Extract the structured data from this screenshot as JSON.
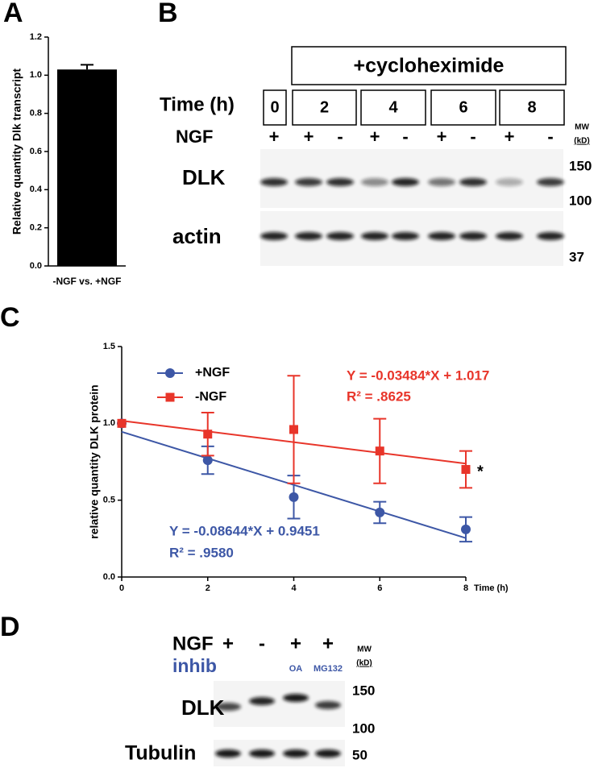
{
  "panel_labels": [
    "A",
    "B",
    "C",
    "D"
  ],
  "chart_data": [
    {
      "type": "bar",
      "ylabel": "Relative quantity Dlk transcript",
      "categories": [
        "-NGF vs. +NGF"
      ],
      "values": [
        1.03
      ],
      "errors": [
        0.025
      ],
      "color": "#000000",
      "ylim": [
        0,
        1.2
      ],
      "yticks": [
        {
          "value": 0,
          "label": "0.0"
        },
        0.2,
        0.4,
        0.6,
        0.8,
        {
          "value": 1,
          "label": "1.0"
        },
        1.2
      ]
    },
    {
      "type": "line",
      "xlabel": "Time (h)",
      "ylabel": "relative quantity DLK protein",
      "x": [
        0,
        2,
        4,
        6,
        8
      ],
      "series": [
        {
          "name": "+NGF",
          "color": "#3d57a6",
          "marker": "circle",
          "values": [
            1.0,
            0.76,
            0.52,
            0.42,
            0.31
          ],
          "errors": [
            0,
            0.09,
            0.14,
            0.07,
            0.08
          ],
          "fit": {
            "slope": -0.08644,
            "intercept": 0.9451
          },
          "fit_label": "Y = -0.08644*X + 0.9451",
          "r2_label": "R² = .9580"
        },
        {
          "name": "-NGF",
          "color": "#e8352a",
          "marker": "square",
          "values": [
            1.0,
            0.93,
            0.96,
            0.82,
            0.7
          ],
          "errors": [
            0,
            0.14,
            0.35,
            0.21,
            0.12
          ],
          "fit": {
            "slope": -0.03484,
            "intercept": 1.017
          },
          "fit_label": "Y = -0.03484*X + 1.017",
          "r2_label": "R² = .8625"
        }
      ],
      "significance": "*",
      "xlim": [
        0,
        8
      ],
      "ylim": [
        0,
        1.5
      ],
      "xticks": [
        0,
        2,
        4,
        6,
        8
      ],
      "yticks": [
        {
          "value": 0,
          "label": "0.0"
        },
        0.5,
        {
          "value": 1,
          "label": "1.0"
        },
        1.5
      ]
    }
  ],
  "blot_b": {
    "treatment_label": "+cycloheximide",
    "time_label": "Time (h)",
    "times": [
      "0",
      "2",
      "4",
      "6",
      "8"
    ],
    "ngf_label": "NGF",
    "ngf_signs": [
      "+",
      "+",
      "-",
      "+",
      "-",
      "+",
      "-",
      "+",
      "-"
    ],
    "mw_label": [
      "MW",
      "(kD)"
    ],
    "rows": [
      {
        "label": "DLK",
        "markers": [
          "150",
          "100"
        ]
      },
      {
        "label": "actin",
        "markers": [
          "37"
        ]
      }
    ]
  },
  "blot_d": {
    "ngf_label": "NGF",
    "ngf_signs": [
      "+",
      "-",
      "+",
      "+"
    ],
    "inhib_label": "inhib",
    "inhib_labels": [
      null,
      null,
      "OA",
      "MG132"
    ],
    "mw_label": [
      "MW",
      "(kD)"
    ],
    "rows": [
      {
        "label": "DLK",
        "markers": [
          "150",
          "100"
        ]
      },
      {
        "label": "Tubulin",
        "markers": [
          "50"
        ]
      }
    ]
  }
}
